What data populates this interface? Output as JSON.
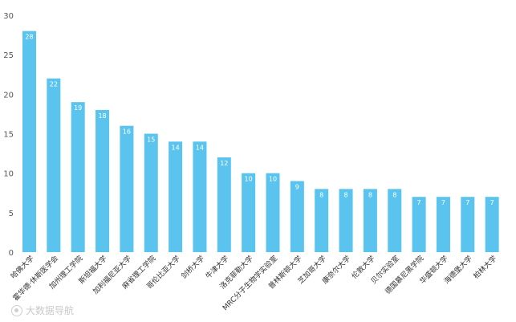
{
  "chart_data": {
    "type": "bar",
    "title": "",
    "xlabel": "",
    "ylabel": "",
    "ylim": [
      0,
      30
    ],
    "yticks": [
      0,
      5,
      10,
      15,
      20,
      25,
      30
    ],
    "grid": false,
    "bar_color": "#5ac4ee",
    "label_color": "#ffffff",
    "categories": [
      "哈佛大学",
      "霍华德·休斯医学会",
      "加州理工学院",
      "斯坦福大学",
      "加利福尼亚大学",
      "麻省理工学院",
      "哥伦比亚大学",
      "剑桥大学",
      "牛津大学",
      "洛克菲勒大学",
      "MRC分子生物学实验室",
      "普林斯顿大学",
      "芝加哥大学",
      "康奈尔大学",
      "伦敦大学",
      "贝尔实验室",
      "德国慕尼黑学院",
      "华盛顿大学",
      "海德堡大学",
      "柏林大学"
    ],
    "values": [
      28,
      22,
      19,
      18,
      16,
      15,
      14,
      14,
      12,
      10,
      10,
      9,
      8,
      8,
      8,
      8,
      7,
      7,
      7,
      7
    ]
  },
  "watermark": {
    "text": "大数据导航",
    "icon": "logo-icon"
  }
}
